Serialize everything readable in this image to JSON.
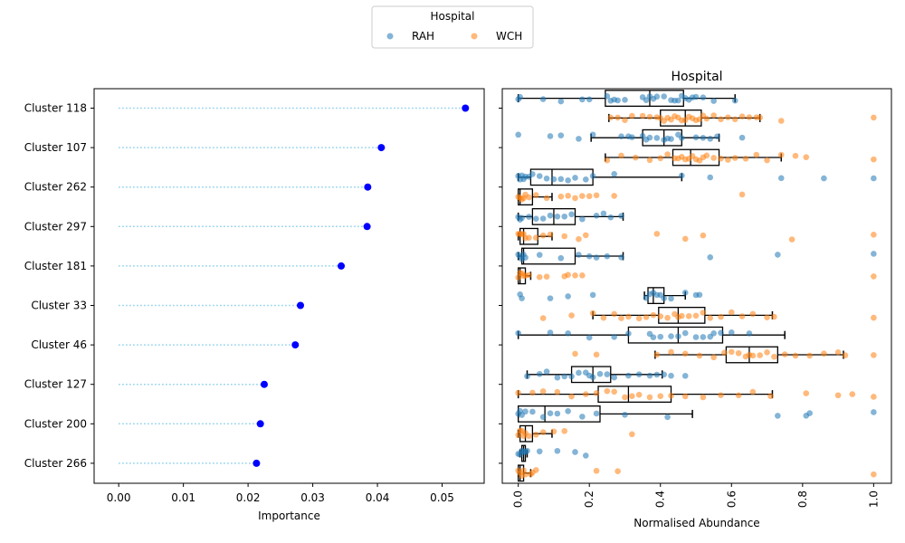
{
  "legend": {
    "title": "Hospital",
    "entries": [
      {
        "label": "RAH",
        "color": "#1f77b4"
      },
      {
        "label": "WCH",
        "color": "#ff7f0e"
      }
    ]
  },
  "chart_data": [
    {
      "type": "lollipop",
      "xlabel": "Importance",
      "ylabel": "",
      "title": "",
      "xlim": [
        -0.0038,
        0.0565
      ],
      "xticks": [
        "0.00",
        "0.01",
        "0.02",
        "0.03",
        "0.04",
        "0.05"
      ],
      "marker_color": "#0000ff",
      "stem_color": "#87ceeb",
      "categories": [
        "Cluster 118",
        "Cluster 107",
        "Cluster 262",
        "Cluster 297",
        "Cluster 181",
        "Cluster 33",
        "Cluster 46",
        "Cluster 127",
        "Cluster 200",
        "Cluster 266"
      ],
      "values": [
        0.0536,
        0.0406,
        0.0385,
        0.0384,
        0.0344,
        0.0281,
        0.0273,
        0.0225,
        0.0219,
        0.0213
      ]
    },
    {
      "type": "box-strip",
      "title": "Hospital",
      "xlabel": "Normalised Abundance",
      "ylabel": "",
      "xlim": [
        -0.045,
        1.05
      ],
      "xticks": [
        "0.0",
        "0.2",
        "0.4",
        "0.6",
        "0.8",
        "1.0"
      ],
      "categories": [
        "Cluster 118",
        "Cluster 107",
        "Cluster 262",
        "Cluster 297",
        "Cluster 181",
        "Cluster 33",
        "Cluster 46",
        "Cluster 127",
        "Cluster 200",
        "Cluster 266"
      ],
      "series": [
        {
          "name": "RAH",
          "color": "#1f77b4",
          "boxes": [
            {
              "whislo": 0.0,
              "q1": 0.245,
              "med": 0.37,
              "q3": 0.465,
              "whishi": 0.61
            },
            {
              "whislo": 0.205,
              "q1": 0.35,
              "med": 0.41,
              "q3": 0.46,
              "whishi": 0.565
            },
            {
              "whislo": 0.0,
              "q1": 0.035,
              "med": 0.095,
              "q3": 0.21,
              "whishi": 0.46
            },
            {
              "whislo": 0.0,
              "q1": 0.04,
              "med": 0.1,
              "q3": 0.16,
              "whishi": 0.295
            },
            {
              "whislo": 0.0,
              "q1": 0.01,
              "med": 0.015,
              "q3": 0.16,
              "whishi": 0.295
            },
            {
              "whislo": 0.355,
              "q1": 0.365,
              "med": 0.38,
              "q3": 0.41,
              "whishi": 0.47
            },
            {
              "whislo": 0.0,
              "q1": 0.31,
              "med": 0.45,
              "q3": 0.575,
              "whishi": 0.75
            },
            {
              "whislo": 0.025,
              "q1": 0.15,
              "med": 0.21,
              "q3": 0.26,
              "whishi": 0.405
            },
            {
              "whislo": 0.0,
              "q1": 0.0,
              "med": 0.075,
              "q3": 0.23,
              "whishi": 0.49
            },
            {
              "whislo": 0.005,
              "q1": 0.01,
              "med": 0.015,
              "q3": 0.02,
              "whishi": 0.025
            }
          ],
          "points": [
            [
              0.0,
              0.005,
              0.07,
              0.12,
              0.18,
              0.2,
              0.25,
              0.26,
              0.27,
              0.28,
              0.3,
              0.35,
              0.36,
              0.37,
              0.38,
              0.39,
              0.41,
              0.43,
              0.44,
              0.45,
              0.46,
              0.47,
              0.48,
              0.49,
              0.5,
              0.52,
              0.55,
              0.61
            ],
            [
              0.0,
              0.09,
              0.12,
              0.17,
              0.21,
              0.29,
              0.31,
              0.32,
              0.35,
              0.36,
              0.37,
              0.39,
              0.41,
              0.42,
              0.43,
              0.45,
              0.46,
              0.5,
              0.52,
              0.54,
              0.56,
              0.63
            ],
            [
              0.0,
              0.005,
              0.01,
              0.015,
              0.02,
              0.03,
              0.04,
              0.06,
              0.08,
              0.1,
              0.12,
              0.14,
              0.16,
              0.19,
              0.21,
              0.27,
              0.46,
              0.54,
              0.74,
              0.86,
              1.0
            ],
            [
              0.0,
              0.005,
              0.01,
              0.03,
              0.05,
              0.07,
              0.09,
              0.11,
              0.13,
              0.15,
              0.18,
              0.22,
              0.24,
              0.26,
              0.29
            ],
            [
              0.0,
              0.005,
              0.01,
              0.015,
              0.02,
              0.06,
              0.12,
              0.17,
              0.2,
              0.22,
              0.25,
              0.29,
              0.54,
              0.73,
              1.0
            ],
            [
              0.005,
              0.01,
              0.09,
              0.14,
              0.21,
              0.36,
              0.37,
              0.38,
              0.39,
              0.4,
              0.41,
              0.43,
              0.47,
              0.5,
              0.51
            ],
            [
              0.0,
              0.09,
              0.14,
              0.2,
              0.27,
              0.31,
              0.37,
              0.38,
              0.4,
              0.43,
              0.45,
              0.47,
              0.5,
              0.52,
              0.54,
              0.55,
              0.57,
              0.6,
              0.65
            ],
            [
              0.025,
              0.06,
              0.08,
              0.11,
              0.13,
              0.15,
              0.17,
              0.19,
              0.2,
              0.21,
              0.23,
              0.25,
              0.27,
              0.31,
              0.34,
              0.37,
              0.39,
              0.41,
              0.43,
              0.47
            ],
            [
              0.0,
              0.005,
              0.01,
              0.02,
              0.04,
              0.07,
              0.09,
              0.11,
              0.14,
              0.18,
              0.22,
              0.3,
              0.42,
              0.73,
              0.81,
              0.82,
              1.0
            ],
            [
              0.0,
              0.005,
              0.01,
              0.015,
              0.02,
              0.025,
              0.06,
              0.11,
              0.16,
              0.19
            ]
          ]
        },
        {
          "name": "WCH",
          "color": "#ff7f0e",
          "boxes": [
            {
              "whislo": 0.255,
              "q1": 0.4,
              "med": 0.47,
              "q3": 0.515,
              "whishi": 0.68
            },
            {
              "whislo": 0.245,
              "q1": 0.435,
              "med": 0.485,
              "q3": 0.565,
              "whishi": 0.74
            },
            {
              "whislo": 0.0,
              "q1": 0.0,
              "med": 0.005,
              "q3": 0.04,
              "whishi": 0.095
            },
            {
              "whislo": 0.0,
              "q1": 0.005,
              "med": 0.015,
              "q3": 0.055,
              "whishi": 0.095
            },
            {
              "whislo": 0.0,
              "q1": 0.0,
              "med": 0.005,
              "q3": 0.02,
              "whishi": 0.035
            },
            {
              "whislo": 0.21,
              "q1": 0.395,
              "med": 0.45,
              "q3": 0.525,
              "whishi": 0.715
            },
            {
              "whislo": 0.385,
              "q1": 0.585,
              "med": 0.65,
              "q3": 0.73,
              "whishi": 0.915
            },
            {
              "whislo": 0.0,
              "q1": 0.225,
              "med": 0.31,
              "q3": 0.43,
              "whishi": 0.715
            },
            {
              "whislo": 0.0,
              "q1": 0.005,
              "med": 0.02,
              "q3": 0.04,
              "whishi": 0.095
            },
            {
              "whislo": 0.0,
              "q1": 0.0,
              "med": 0.005,
              "q3": 0.015,
              "whishi": 0.035
            }
          ],
          "points": [
            [
              0.26,
              0.28,
              0.3,
              0.32,
              0.35,
              0.37,
              0.39,
              0.4,
              0.41,
              0.42,
              0.43,
              0.44,
              0.45,
              0.46,
              0.47,
              0.48,
              0.49,
              0.5,
              0.51,
              0.52,
              0.53,
              0.55,
              0.57,
              0.59,
              0.61,
              0.63,
              0.65,
              0.67,
              0.68,
              0.74,
              1.0
            ],
            [
              0.25,
              0.29,
              0.33,
              0.37,
              0.4,
              0.42,
              0.44,
              0.45,
              0.46,
              0.47,
              0.48,
              0.49,
              0.5,
              0.51,
              0.52,
              0.53,
              0.55,
              0.57,
              0.59,
              0.61,
              0.64,
              0.67,
              0.7,
              0.74,
              0.78,
              0.81,
              1.0
            ],
            [
              0.0,
              0.005,
              0.01,
              0.015,
              0.02,
              0.03,
              0.05,
              0.08,
              0.12,
              0.14,
              0.16,
              0.18,
              0.2,
              0.22,
              0.27,
              0.63
            ],
            [
              0.0,
              0.005,
              0.01,
              0.015,
              0.02,
              0.03,
              0.05,
              0.07,
              0.09,
              0.13,
              0.17,
              0.19,
              0.39,
              0.47,
              0.52,
              0.77,
              1.0
            ],
            [
              0.0,
              0.005,
              0.01,
              0.015,
              0.02,
              0.03,
              0.06,
              0.08,
              0.13,
              0.14,
              0.16,
              0.18,
              1.0
            ],
            [
              0.21,
              0.24,
              0.27,
              0.29,
              0.31,
              0.34,
              0.36,
              0.38,
              0.4,
              0.42,
              0.44,
              0.45,
              0.46,
              0.48,
              0.5,
              0.52,
              0.54,
              0.57,
              0.6,
              0.63,
              0.66,
              0.7,
              0.72,
              0.07,
              0.15,
              1.0
            ],
            [
              0.16,
              0.22,
              0.39,
              0.43,
              0.47,
              0.51,
              0.55,
              0.58,
              0.6,
              0.62,
              0.64,
              0.65,
              0.66,
              0.68,
              0.7,
              0.72,
              0.75,
              0.78,
              0.82,
              0.86,
              0.9,
              0.92,
              1.0
            ],
            [
              0.0,
              0.04,
              0.07,
              0.11,
              0.15,
              0.19,
              0.22,
              0.25,
              0.27,
              0.3,
              0.32,
              0.34,
              0.37,
              0.4,
              0.43,
              0.47,
              0.52,
              0.57,
              0.62,
              0.66,
              0.71,
              0.81,
              0.9,
              0.94,
              1.0
            ],
            [
              0.0,
              0.005,
              0.01,
              0.015,
              0.02,
              0.03,
              0.05,
              0.07,
              0.1,
              0.13,
              0.32
            ],
            [
              0.0,
              0.005,
              0.01,
              0.015,
              0.02,
              0.035,
              0.04,
              0.05,
              0.22,
              0.28,
              1.0
            ]
          ]
        }
      ]
    }
  ]
}
